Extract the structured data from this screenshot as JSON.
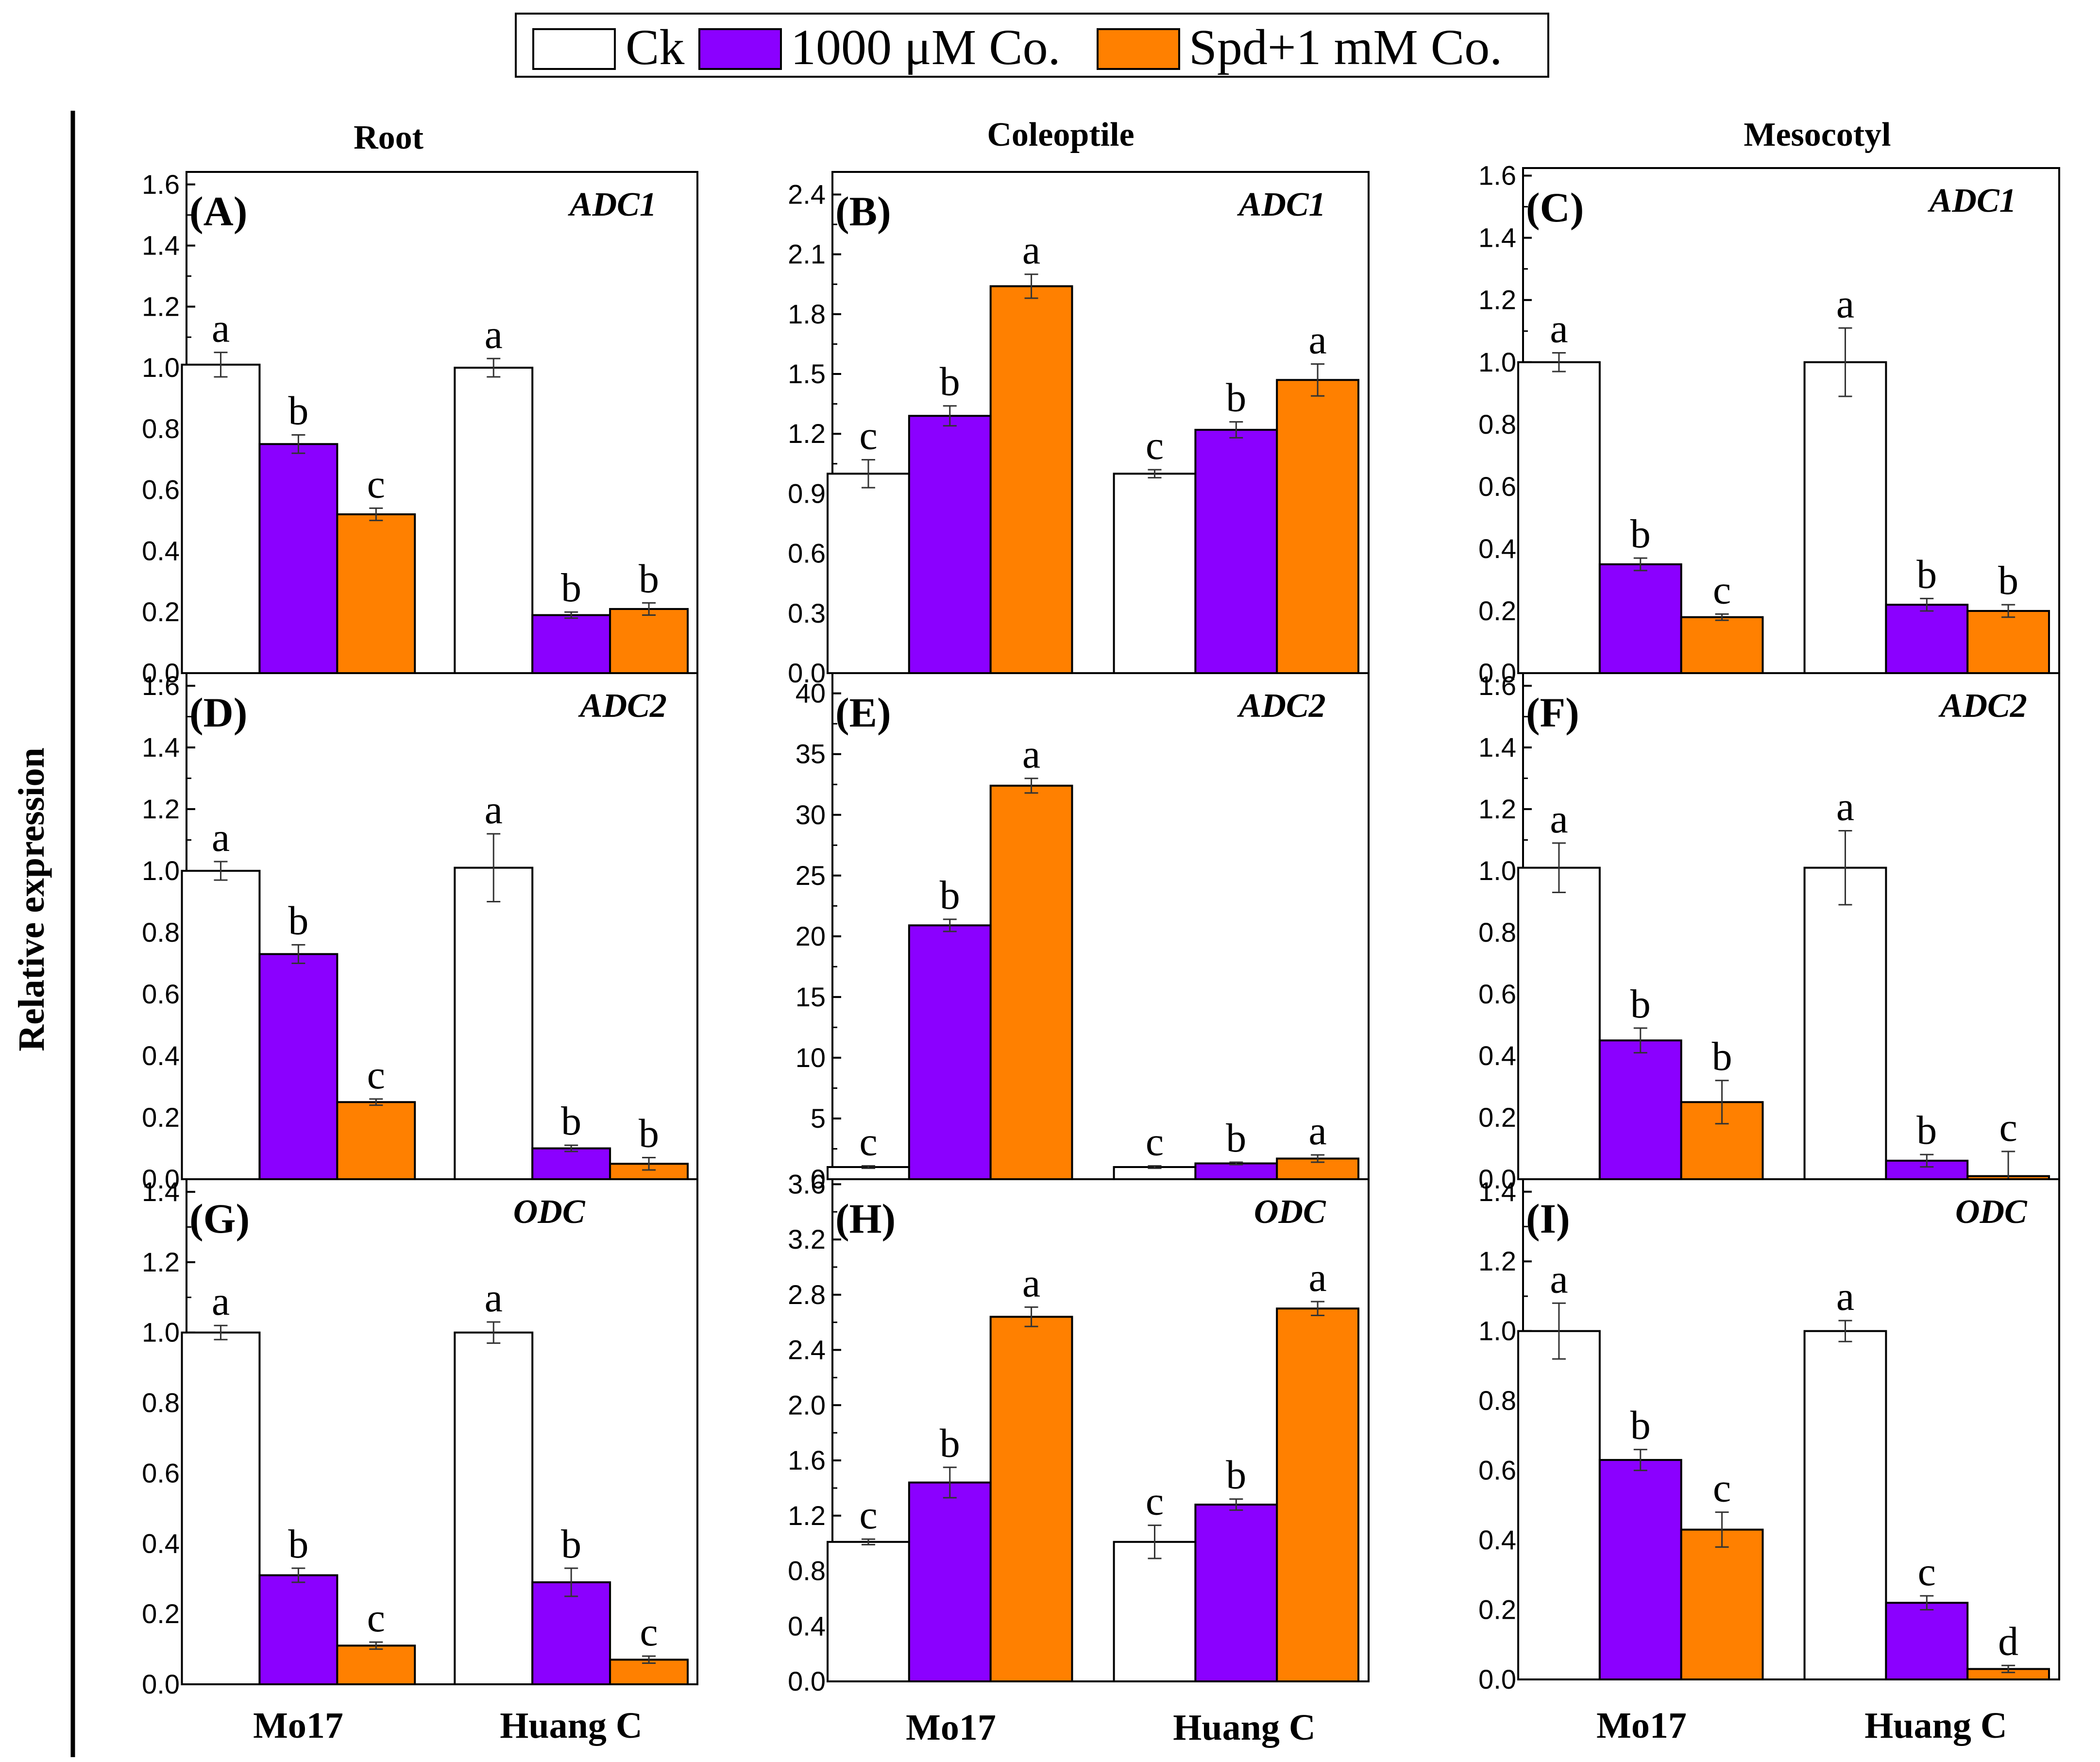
{
  "legend": [
    {
      "label": "Ck",
      "color": "#ffffff"
    },
    {
      "label": "1000 μM Co.",
      "color": "#8b00ff"
    },
    {
      "label": "Spd+1 mM Co.",
      "color": "#ff8000"
    }
  ],
  "ylabel": "Relative expression",
  "column_titles": [
    "Root",
    "Coleoptile",
    "Mesocotyl"
  ],
  "chart_data": [
    {
      "type": "bar",
      "panel": "(A)",
      "gene": "ADC1",
      "column": "Root",
      "categories": [
        "Mo17",
        "Huang C"
      ],
      "ylim": [
        0,
        1.6
      ],
      "yticks": [
        "0.0",
        "0.2",
        "0.4",
        "0.6",
        "0.8",
        "1.0",
        "1.2",
        "1.4",
        "1.6"
      ],
      "series": [
        {
          "name": "Ck",
          "values": [
            1.01,
            1.0
          ],
          "errors": [
            0.04,
            0.03
          ],
          "letters": [
            "a",
            "a"
          ]
        },
        {
          "name": "1000 μM Co.",
          "values": [
            0.75,
            0.19
          ],
          "errors": [
            0.03,
            0.01
          ],
          "letters": [
            "b",
            "b"
          ]
        },
        {
          "name": "Spd+1 mM Co.",
          "values": [
            0.52,
            0.21
          ],
          "errors": [
            0.02,
            0.02
          ],
          "letters": [
            "c",
            "b"
          ]
        }
      ]
    },
    {
      "type": "bar",
      "panel": "(B)",
      "gene": "ADC1",
      "column": "Coleoptile",
      "categories": [
        "Mo17",
        "Huang C"
      ],
      "ylim": [
        0,
        2.4
      ],
      "yticks": [
        "0.0",
        "0.3",
        "0.6",
        "0.9",
        "1.2",
        "1.5",
        "1.8",
        "2.1",
        "2.4"
      ],
      "series": [
        {
          "name": "Ck",
          "values": [
            1.0,
            1.0
          ],
          "errors": [
            0.07,
            0.02
          ],
          "letters": [
            "c",
            "c"
          ]
        },
        {
          "name": "1000 μM Co.",
          "values": [
            1.29,
            1.22
          ],
          "errors": [
            0.05,
            0.04
          ],
          "letters": [
            "b",
            "b"
          ]
        },
        {
          "name": "Spd+1 mM Co.",
          "values": [
            1.94,
            1.47
          ],
          "errors": [
            0.06,
            0.08
          ],
          "letters": [
            "a",
            "a"
          ]
        }
      ]
    },
    {
      "type": "bar",
      "panel": "(C)",
      "gene": "ADC1",
      "column": "Mesocotyl",
      "categories": [
        "Mo17",
        "Huang C"
      ],
      "ylim": [
        0,
        1.6
      ],
      "yticks": [
        "0.0",
        "0.2",
        "0.4",
        "0.6",
        "0.8",
        "1.0",
        "1.2",
        "1.4",
        "1.6"
      ],
      "series": [
        {
          "name": "Ck",
          "values": [
            1.0,
            1.0
          ],
          "errors": [
            0.03,
            0.11
          ],
          "letters": [
            "a",
            "a"
          ]
        },
        {
          "name": "1000 μM Co.",
          "values": [
            0.35,
            0.22
          ],
          "errors": [
            0.02,
            0.02
          ],
          "letters": [
            "b",
            "b"
          ]
        },
        {
          "name": "Spd+1 mM Co.",
          "values": [
            0.18,
            0.2
          ],
          "errors": [
            0.01,
            0.02
          ],
          "letters": [
            "c",
            "b"
          ]
        }
      ]
    },
    {
      "type": "bar",
      "panel": "(D)",
      "gene": "ADC2",
      "column": "Root",
      "categories": [
        "Mo17",
        "Huang C"
      ],
      "ylim": [
        0,
        1.6
      ],
      "yticks": [
        "0.0",
        "0.2",
        "0.4",
        "0.6",
        "0.8",
        "1.0",
        "1.2",
        "1.4",
        "1.6"
      ],
      "series": [
        {
          "name": "Ck",
          "values": [
            1.0,
            1.01
          ],
          "errors": [
            0.03,
            0.11
          ],
          "letters": [
            "a",
            "a"
          ]
        },
        {
          "name": "1000 μM Co.",
          "values": [
            0.73,
            0.1
          ],
          "errors": [
            0.03,
            0.01
          ],
          "letters": [
            "b",
            "b"
          ]
        },
        {
          "name": "Spd+1 mM Co.",
          "values": [
            0.25,
            0.05
          ],
          "errors": [
            0.01,
            0.02
          ],
          "letters": [
            "c",
            "b"
          ]
        }
      ]
    },
    {
      "type": "bar",
      "panel": "(E)",
      "gene": "ADC2",
      "column": "Coleoptile",
      "categories": [
        "Mo17",
        "Huang C"
      ],
      "ylim": [
        0,
        40
      ],
      "yticks": [
        "0",
        "5",
        "10",
        "15",
        "20",
        "25",
        "30",
        "35",
        "40"
      ],
      "series": [
        {
          "name": "Ck",
          "values": [
            1.0,
            1.0
          ],
          "errors": [
            0.1,
            0.1
          ],
          "letters": [
            "c",
            "c"
          ]
        },
        {
          "name": "1000 μM Co.",
          "values": [
            20.9,
            1.3
          ],
          "errors": [
            0.5,
            0.1
          ],
          "letters": [
            "b",
            "b"
          ]
        },
        {
          "name": "Spd+1 mM Co.",
          "values": [
            32.4,
            1.7
          ],
          "errors": [
            0.6,
            0.3
          ],
          "letters": [
            "a",
            "a"
          ]
        }
      ]
    },
    {
      "type": "bar",
      "panel": "(F)",
      "gene": "ADC2",
      "column": "Mesocotyl",
      "categories": [
        "Mo17",
        "Huang C"
      ],
      "ylim": [
        0,
        1.6
      ],
      "yticks": [
        "0.0",
        "0.2",
        "0.4",
        "0.6",
        "0.8",
        "1.0",
        "1.2",
        "1.4",
        "1.6"
      ],
      "series": [
        {
          "name": "Ck",
          "values": [
            1.01,
            1.01
          ],
          "errors": [
            0.08,
            0.12
          ],
          "letters": [
            "a",
            "a"
          ]
        },
        {
          "name": "1000 μM Co.",
          "values": [
            0.45,
            0.06
          ],
          "errors": [
            0.04,
            0.02
          ],
          "letters": [
            "b",
            "b"
          ]
        },
        {
          "name": "Spd+1 mM Co.",
          "values": [
            0.25,
            0.01
          ],
          "errors": [
            0.07,
            0.08
          ],
          "letters": [
            "b",
            "c"
          ]
        }
      ]
    },
    {
      "type": "bar",
      "panel": "(G)",
      "gene": "ODC",
      "column": "Root",
      "categories": [
        "Mo17",
        "Huang C"
      ],
      "ylim": [
        0,
        1.4
      ],
      "yticks": [
        "0.0",
        "0.2",
        "0.4",
        "0.6",
        "0.8",
        "1.0",
        "1.2",
        "1.4"
      ],
      "series": [
        {
          "name": "Ck",
          "values": [
            1.0,
            1.0
          ],
          "errors": [
            0.02,
            0.03
          ],
          "letters": [
            "a",
            "a"
          ]
        },
        {
          "name": "1000 μM Co.",
          "values": [
            0.31,
            0.29
          ],
          "errors": [
            0.02,
            0.04
          ],
          "letters": [
            "b",
            "b"
          ]
        },
        {
          "name": "Spd+1 mM Co.",
          "values": [
            0.11,
            0.07
          ],
          "errors": [
            0.01,
            0.01
          ],
          "letters": [
            "c",
            "c"
          ]
        }
      ]
    },
    {
      "type": "bar",
      "panel": "(H)",
      "gene": "ODC",
      "column": "Coleoptile",
      "categories": [
        "Mo17",
        "Huang C"
      ],
      "ylim": [
        0,
        3.6
      ],
      "yticks": [
        "0.0",
        "0.4",
        "0.8",
        "1.2",
        "1.6",
        "2.0",
        "2.4",
        "2.8",
        "3.2",
        "3.6"
      ],
      "series": [
        {
          "name": "Ck",
          "values": [
            1.01,
            1.01
          ],
          "errors": [
            0.02,
            0.12
          ],
          "letters": [
            "c",
            "c"
          ]
        },
        {
          "name": "1000 μM Co.",
          "values": [
            1.44,
            1.28
          ],
          "errors": [
            0.11,
            0.04
          ],
          "letters": [
            "b",
            "b"
          ]
        },
        {
          "name": "Spd+1 mM Co.",
          "values": [
            2.64,
            2.7
          ],
          "errors": [
            0.07,
            0.05
          ],
          "letters": [
            "a",
            "a"
          ]
        }
      ]
    },
    {
      "type": "bar",
      "panel": "(I)",
      "gene": "ODC",
      "column": "Mesocotyl",
      "categories": [
        "Mo17",
        "Huang C"
      ],
      "ylim": [
        0,
        1.4
      ],
      "yticks": [
        "0.0",
        "0.2",
        "0.4",
        "0.6",
        "0.8",
        "1.0",
        "1.2",
        "1.4"
      ],
      "series": [
        {
          "name": "Ck",
          "values": [
            1.0,
            1.0
          ],
          "errors": [
            0.08,
            0.03
          ],
          "letters": [
            "a",
            "a"
          ]
        },
        {
          "name": "1000 μM Co.",
          "values": [
            0.63,
            0.22
          ],
          "errors": [
            0.03,
            0.02
          ],
          "letters": [
            "b",
            "c"
          ]
        },
        {
          "name": "Spd+1 mM Co.",
          "values": [
            0.43,
            0.03
          ],
          "errors": [
            0.05,
            0.01
          ],
          "letters": [
            "c",
            "d"
          ]
        }
      ]
    }
  ]
}
